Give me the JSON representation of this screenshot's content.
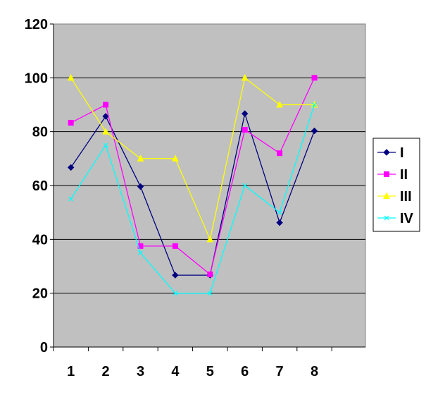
{
  "chart_data": {
    "type": "line",
    "categories": [
      "1",
      "2",
      "3",
      "4",
      "5",
      "6",
      "7",
      "8"
    ],
    "ylim": [
      0,
      120
    ],
    "yticks": [
      "0",
      "20",
      "40",
      "60",
      "80",
      "100",
      "120"
    ],
    "grid": "horizontal",
    "plot_background": "#c0c0c0",
    "legend_position": "right",
    "series": [
      {
        "name": "I",
        "color": "#000080",
        "marker": "diamond",
        "values": [
          66.7,
          85.7,
          59.6,
          26.7,
          26.7,
          86.7,
          46.2,
          80.3
        ]
      },
      {
        "name": "II",
        "color": "#ff00ff",
        "marker": "square",
        "values": [
          83.3,
          90.0,
          37.5,
          37.5,
          27.0,
          80.7,
          72.0,
          100.0
        ]
      },
      {
        "name": "III",
        "color": "#ffff00",
        "marker": "triangle",
        "values": [
          100.0,
          80.0,
          70.0,
          70.0,
          40.0,
          100.0,
          90.0,
          90.0
        ]
      },
      {
        "name": "IV",
        "color": "#00ffff",
        "marker": "x",
        "values": [
          55.0,
          75.0,
          35.0,
          20.0,
          20.0,
          60.0,
          50.0,
          90.0
        ]
      }
    ]
  }
}
